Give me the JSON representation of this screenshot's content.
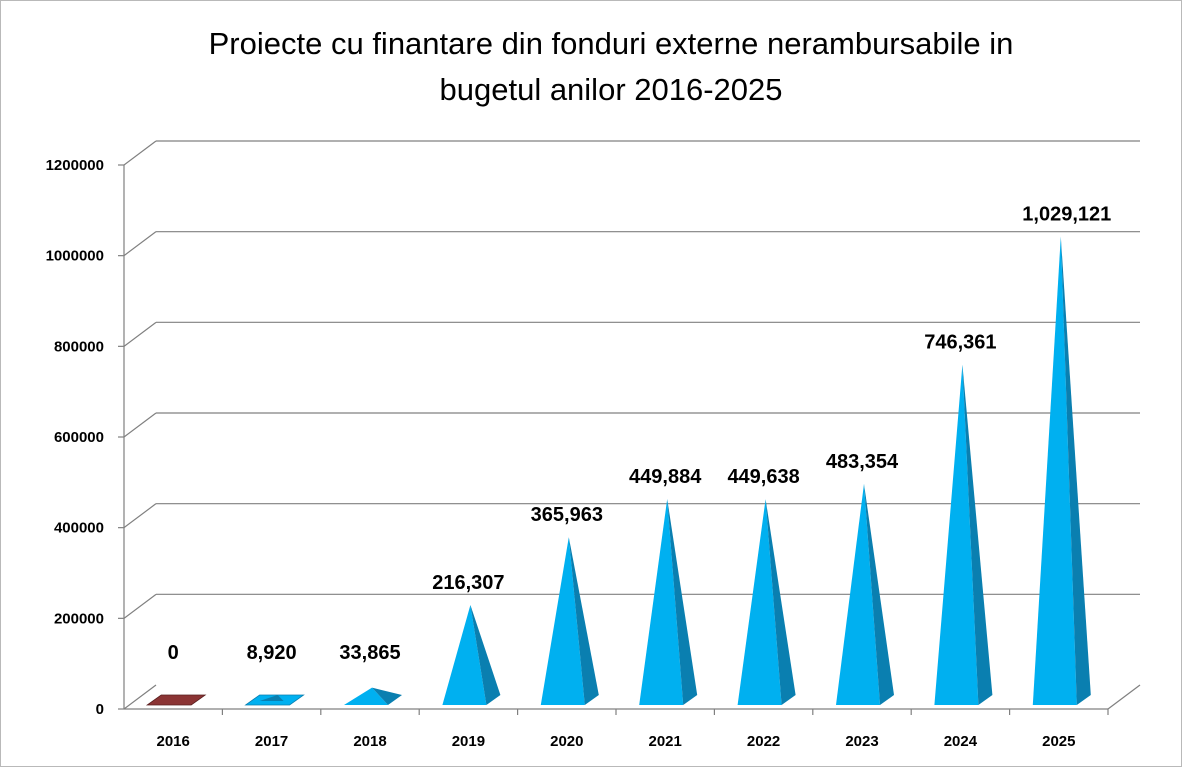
{
  "chart_data": {
    "type": "bar",
    "title_line1": "Proiecte cu finantare din fonduri externe nerambursabile in",
    "title_line2": "bugetul anilor  2016-2025",
    "categories": [
      "2016",
      "2017",
      "2018",
      "2019",
      "2020",
      "2021",
      "2022",
      "2023",
      "2024",
      "2025"
    ],
    "values": [
      0,
      8920,
      33865,
      216307,
      365963,
      449884,
      449638,
      483354,
      746361,
      1029121
    ],
    "data_labels": [
      "0",
      "8,920",
      "33,865",
      "216,307",
      "365,963",
      "449,884",
      "449,638",
      "483,354",
      "746,361",
      "1,029,121"
    ],
    "yticks": [
      "0",
      "200000",
      "400000",
      "600000",
      "800000",
      "1000000",
      "1200000"
    ],
    "ylim": [
      0,
      1200000
    ],
    "grid": true,
    "legend": "none",
    "colors": {
      "bar_front": "#00b0f0",
      "bar_side": "#0a7fb0",
      "first_bar": "#8b3434",
      "grid": "#808080"
    }
  }
}
